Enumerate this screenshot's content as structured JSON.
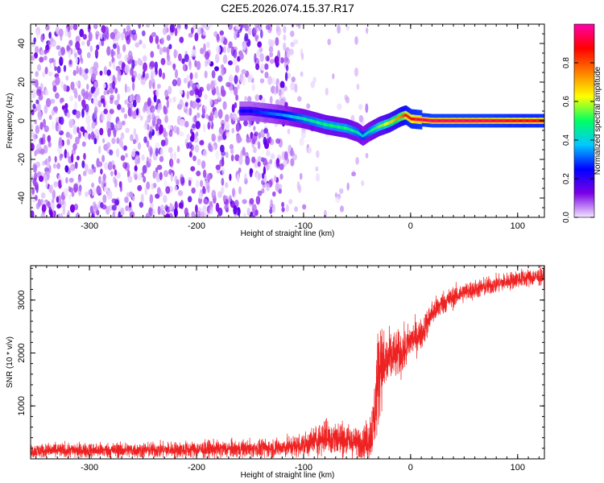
{
  "figure": {
    "title": "C2E5.2026.074.15.37.R17"
  },
  "colors": {
    "snr_line": "#ee2222",
    "axis": "#000000",
    "spec_low": "#9a78ea",
    "spec_high": "#ff0000"
  },
  "chart_data": [
    {
      "type": "heatmap",
      "xlabel": "Height of straight line (km)",
      "ylabel": "Frequency (Hz)",
      "xlim": [
        -355,
        125
      ],
      "ylim": [
        -50,
        50
      ],
      "xticks": [
        -300,
        -200,
        -100,
        0,
        100
      ],
      "yticks": [
        -40,
        -20,
        0,
        20,
        40
      ],
      "colorbar": {
        "label": "Normalized spectral amplitude",
        "range": [
          0,
          1
        ],
        "ticks": [
          "0.0",
          "0.2",
          "0.4",
          "0.6",
          "0.8"
        ],
        "colormap": [
          "#f2e6ff",
          "#7a00e6",
          "#0000ff",
          "#00c8ff",
          "#00ff64",
          "#ffff00",
          "#ff7f00",
          "#ff0000",
          "#ff00aa"
        ]
      },
      "ridge": {
        "x": [
          -150,
          -120,
          -100,
          -80,
          -60,
          -50,
          -45,
          -40,
          -30,
          -20,
          -10,
          -5,
          0,
          20,
          60,
          100,
          125
        ],
        "frequency": [
          5,
          3,
          1,
          -2,
          -4,
          -6,
          -8,
          -6,
          -3,
          -1,
          2,
          3,
          1,
          0,
          0,
          0,
          0
        ],
        "amplitude": [
          0.25,
          0.35,
          0.45,
          0.5,
          0.5,
          0.45,
          0.4,
          0.45,
          0.55,
          0.65,
          0.75,
          0.85,
          0.9,
          0.95,
          0.95,
          0.9,
          0.9
        ]
      }
    },
    {
      "type": "line",
      "xlabel": "Height of straight line (km)",
      "ylabel": "SNR (10 * v/v)",
      "xlim": [
        -355,
        125
      ],
      "ylim": [
        0,
        3650
      ],
      "xticks": [
        -300,
        -200,
        -100,
        0,
        100
      ],
      "yticks": [
        1000,
        2000,
        3000
      ],
      "series": [
        {
          "x": [
            -355,
            -300,
            -250,
            -200,
            -150,
            -120,
            -100,
            -90,
            -80,
            -70,
            -60,
            -50,
            -40,
            -35,
            -30,
            -28,
            -25,
            -20,
            -15,
            -10,
            -5,
            0,
            5,
            10,
            15,
            20,
            30,
            40,
            50,
            60,
            70,
            80,
            90,
            100,
            110,
            125
          ],
          "y": [
            150,
            160,
            165,
            175,
            190,
            210,
            260,
            330,
            420,
            380,
            360,
            300,
            350,
            600,
            1600,
            1900,
            1700,
            1900,
            1950,
            2000,
            2050,
            2250,
            2300,
            2350,
            2550,
            2750,
            2950,
            3050,
            3150,
            3200,
            3250,
            3300,
            3350,
            3400,
            3420,
            3450
          ],
          "noise": [
            120,
            130,
            130,
            140,
            150,
            160,
            200,
            250,
            300,
            300,
            280,
            250,
            350,
            500,
            900,
            700,
            650,
            450,
            400,
            380,
            350,
            300,
            280,
            260,
            240,
            220,
            200,
            180,
            170,
            160,
            160,
            150,
            150,
            150,
            150,
            150
          ]
        }
      ]
    }
  ]
}
